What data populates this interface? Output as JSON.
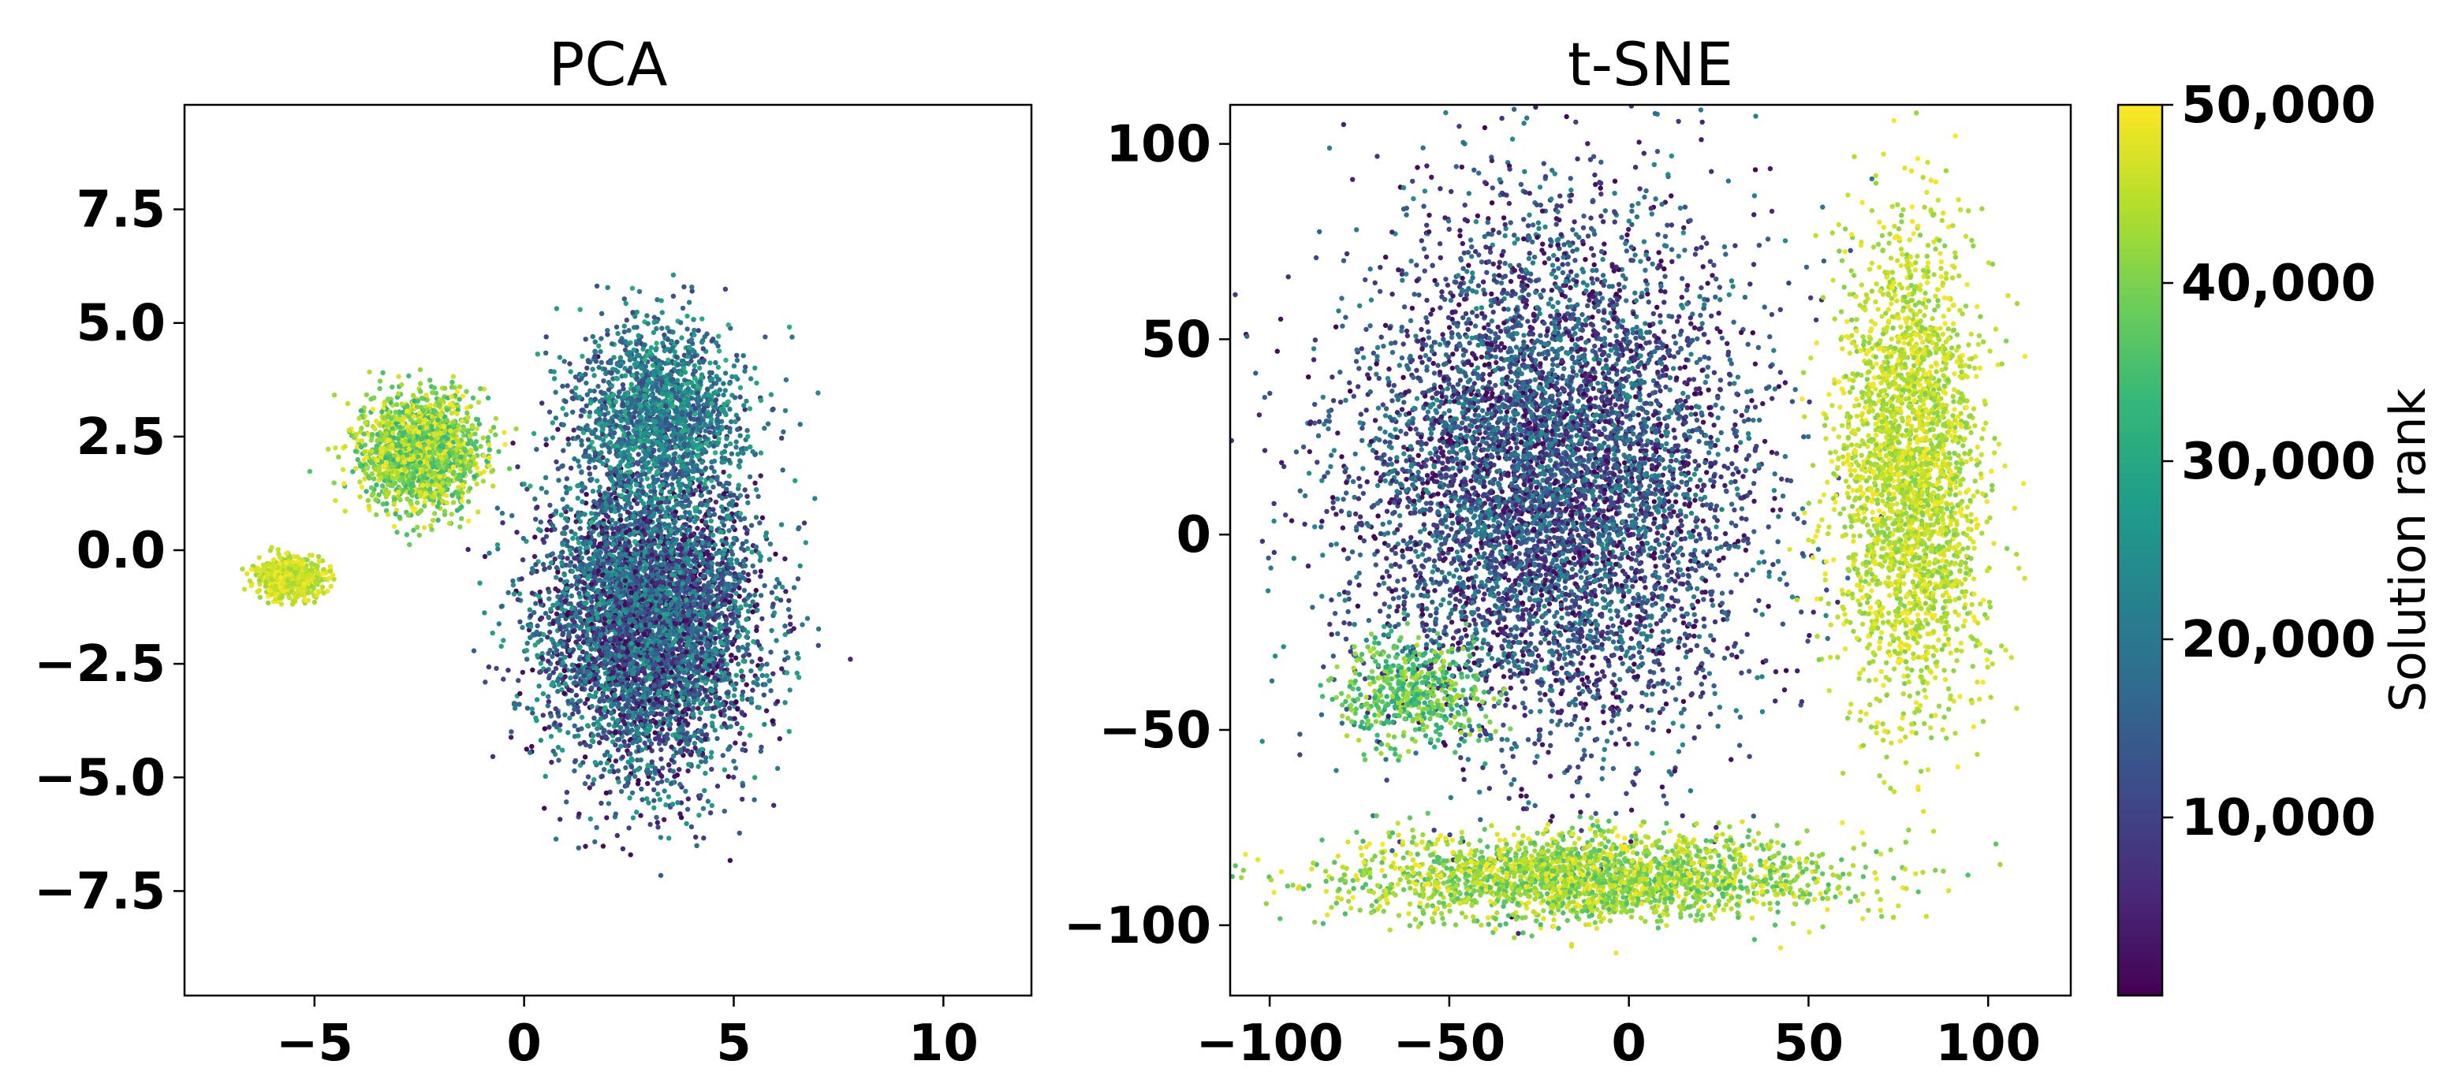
{
  "chart_data": [
    {
      "type": "scatter",
      "title": "PCA",
      "xlim": [
        -8.1,
        12.1
      ],
      "ylim": [
        -9.8,
        9.8
      ],
      "xticks": [
        -5,
        0,
        5,
        10
      ],
      "yticks": [
        -7.5,
        -5.0,
        -2.5,
        0.0,
        2.5,
        5.0,
        7.5
      ],
      "xtick_labels": [
        "−5",
        "0",
        "5",
        "10"
      ],
      "ytick_labels": [
        "−7.5",
        "−5.0",
        "−2.5",
        "0.0",
        "2.5",
        "5.0",
        "7.5"
      ],
      "color_by": "Solution rank",
      "regions": [
        {
          "desc": "main cloud, low-to-mid ranks",
          "center": [
            3.0,
            -1.5
          ],
          "spread": [
            2.3,
            3.0
          ],
          "rank_range": [
            1,
            30000
          ],
          "points": 5200
        },
        {
          "desc": "upper cloud, mid ranks",
          "center": [
            3.2,
            3.0
          ],
          "spread": [
            1.8,
            1.8
          ],
          "rank_range": [
            10000,
            32000
          ],
          "points": 1600
        },
        {
          "desc": "left arm, high ranks",
          "center": [
            -2.5,
            2.2
          ],
          "spread": [
            1.3,
            1.1
          ],
          "rank_range": [
            33000,
            50000
          ],
          "points": 1600
        },
        {
          "desc": "left tip, highest ranks",
          "center": [
            -5.6,
            -0.6
          ],
          "spread": [
            0.7,
            0.4
          ],
          "rank_range": [
            42000,
            50000
          ],
          "points": 700
        }
      ]
    },
    {
      "type": "scatter",
      "title": "t-SNE",
      "xlim": [
        -111,
        123
      ],
      "ylim": [
        -118,
        110
      ],
      "xticks": [
        -100,
        -50,
        0,
        50,
        100
      ],
      "yticks": [
        -100,
        -50,
        0,
        50,
        100
      ],
      "xtick_labels": [
        "−100",
        "−50",
        "0",
        "50",
        "100"
      ],
      "ytick_labels": [
        "−100",
        "−50",
        "0",
        "50",
        "100"
      ],
      "color_by": "Solution rank",
      "regions": [
        {
          "desc": "large dark cluster",
          "center": [
            -22,
            15
          ],
          "spread": [
            50,
            60
          ],
          "rank_range": [
            1,
            25000
          ],
          "points": 6500
        },
        {
          "desc": "lower-left band",
          "center": [
            -60,
            -40
          ],
          "spread": [
            18,
            12
          ],
          "rank_range": [
            30000,
            45000
          ],
          "points": 500
        },
        {
          "desc": "bottom arc",
          "center": [
            -10,
            -88
          ],
          "spread": [
            60,
            10
          ],
          "rank_range": [
            35000,
            50000
          ],
          "points": 2200
        },
        {
          "desc": "right arc",
          "center": [
            78,
            15
          ],
          "spread": [
            18,
            55
          ],
          "rank_range": [
            40000,
            50000
          ],
          "points": 2600
        }
      ]
    }
  ],
  "colorbar": {
    "label": "Solution rank",
    "range": [
      1,
      50000
    ],
    "ticks": [
      10000,
      20000,
      30000,
      40000,
      50000
    ],
    "tick_labels": [
      "10,000",
      "20,000",
      "30,000",
      "40,000",
      "50,000"
    ],
    "colormap": [
      "#440154",
      "#482878",
      "#3e4989",
      "#31688e",
      "#26828e",
      "#1f9e89",
      "#35b779",
      "#6ece58",
      "#b5de2b",
      "#fde725"
    ]
  }
}
